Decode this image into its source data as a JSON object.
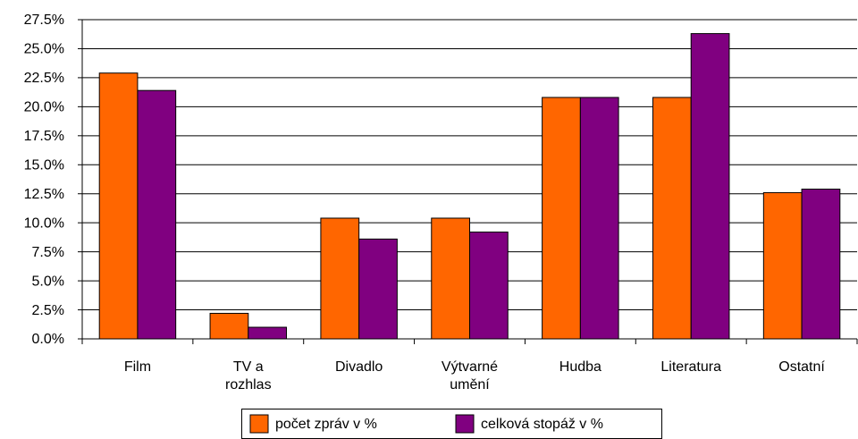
{
  "chart_data": {
    "type": "bar",
    "categories": [
      "Film",
      "TV a rozhlas",
      "Divadlo",
      "Výtvarné umění",
      "Hudba",
      "Literatura",
      "Ostatní"
    ],
    "series": [
      {
        "name": "počet zpráv v %",
        "color": "#ff6600",
        "values": [
          22.9,
          2.2,
          10.4,
          10.4,
          20.8,
          20.8,
          12.6
        ]
      },
      {
        "name": "celková stopáž v %",
        "color": "#800080",
        "values": [
          21.4,
          1.0,
          8.6,
          9.2,
          20.8,
          26.3,
          12.9
        ]
      }
    ],
    "ylim": [
      0,
      27.5
    ],
    "yticks": [
      {
        "value": 0,
        "label": "0.0%"
      },
      {
        "value": 2.5,
        "label": "2.5%"
      },
      {
        "value": 5,
        "label": "5.0%"
      },
      {
        "value": 7.5,
        "label": "7.5%"
      },
      {
        "value": 10,
        "label": "10.0%"
      },
      {
        "value": 12.5,
        "label": "12.5%"
      },
      {
        "value": 15,
        "label": "15.0%"
      },
      {
        "value": 17.5,
        "label": "17.5%"
      },
      {
        "value": 20,
        "label": "20.0%"
      },
      {
        "value": 22.5,
        "label": "22.5%"
      },
      {
        "value": 25,
        "label": "25.0%"
      },
      {
        "value": 27.5,
        "label": "27.5%"
      }
    ],
    "grid": true,
    "legend": "bottom"
  }
}
